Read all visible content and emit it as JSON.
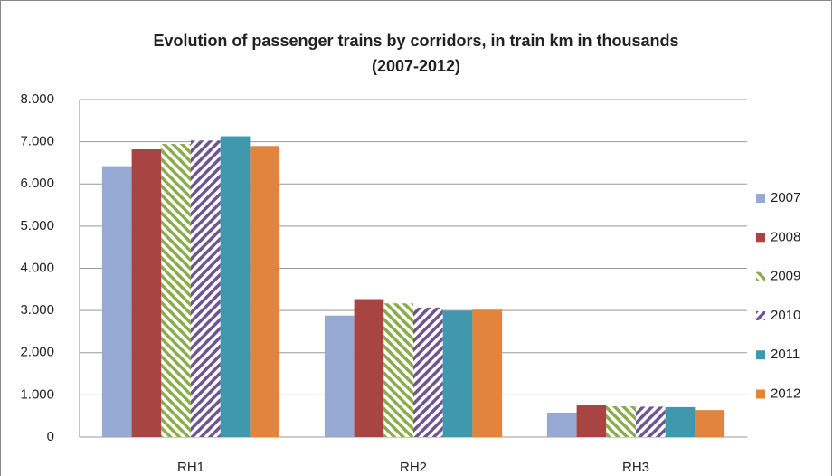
{
  "chart_data": {
    "type": "bar",
    "title": [
      "Evolution of passenger trains by corridors, in train km in thousands",
      "(2007-2012)"
    ],
    "categories": [
      "RH1",
      "RH2",
      "RH3"
    ],
    "series": [
      {
        "name": "2007",
        "color": "#95a9d3",
        "values": [
          6420,
          2880,
          580
        ]
      },
      {
        "name": "2008",
        "color": "#a84442",
        "values": [
          6820,
          3270,
          750
        ]
      },
      {
        "name": "2009",
        "color": "#8aac4c",
        "pattern": "diagonal",
        "values": [
          6950,
          3170,
          730
        ]
      },
      {
        "name": "2010",
        "color": "#6e558f",
        "pattern": "diagonal",
        "values": [
          7030,
          3070,
          720
        ]
      },
      {
        "name": "2011",
        "color": "#3f98ae",
        "values": [
          7130,
          2990,
          710
        ]
      },
      {
        "name": "2012",
        "color": "#e0843e",
        "values": [
          6900,
          3020,
          640
        ]
      }
    ],
    "ylim": [
      0,
      8000
    ],
    "yticks": [
      0,
      {
        "value": 1000,
        "label": "1.000"
      },
      {
        "value": 2000,
        "label": "2.000"
      },
      {
        "value": 3000,
        "label": "3.000"
      },
      {
        "value": 4000,
        "label": "4.000"
      },
      {
        "value": 5000,
        "label": "5.000"
      },
      {
        "value": 6000,
        "label": "6.000"
      },
      {
        "value": 7000,
        "label": "7.000"
      },
      {
        "value": 8000,
        "label": "8.000"
      }
    ],
    "grid": true,
    "legend": "right"
  }
}
